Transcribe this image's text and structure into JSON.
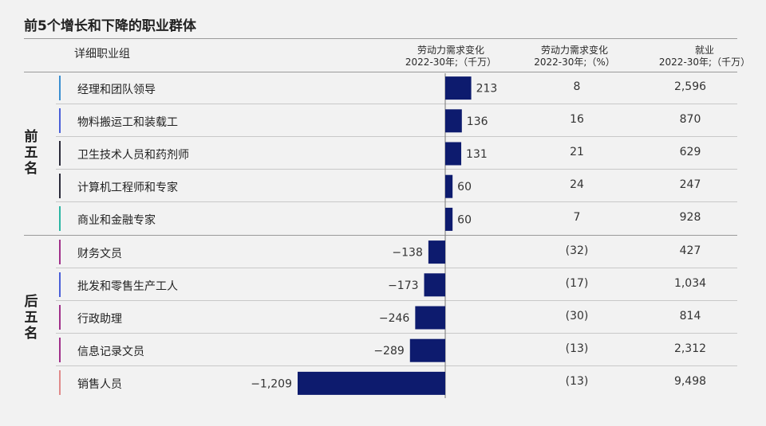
{
  "title": "前5个增长和下降的职业群体",
  "headers": {
    "group": "详细职业组",
    "col1_line1": "劳动力需求变化",
    "col1_line2": "2022-30年;（千万）",
    "col2_line1": "劳动力需求变化",
    "col2_line2": "2022-30年;（%）",
    "col3_line1": "就业",
    "col3_line2": "2022-30年;（千万）"
  },
  "groups": {
    "top": [
      "前",
      "五",
      "名"
    ],
    "bottom": [
      "后",
      "五",
      "名"
    ]
  },
  "colors": {
    "bar": "#0d1b6e",
    "markers": [
      "#3a8fd1",
      "#4a5fd8",
      "#2b2b3a",
      "#2b2b3a",
      "#2bb5a3",
      "#a0308a",
      "#4a5fd8",
      "#a0308a",
      "#a0308a",
      "#e08a8a"
    ]
  },
  "rows": [
    {
      "label": "经理和团队领导",
      "pct": "8",
      "emp": "2,596"
    },
    {
      "label": "物料搬运工和装载工",
      "pct": "16",
      "emp": "870"
    },
    {
      "label": "卫生技术人员和药剂师",
      "pct": "21",
      "emp": "629"
    },
    {
      "label": "计算机工程师和专家",
      "pct": "24",
      "emp": "247"
    },
    {
      "label": "商业和金融专家",
      "pct": "7",
      "emp": "928"
    },
    {
      "label": "财务文员",
      "pct": "(32)",
      "emp": "427"
    },
    {
      "label": "批发和零售生产工人",
      "pct": "(17)",
      "emp": "1,034"
    },
    {
      "label": "行政助理",
      "pct": "(30)",
      "emp": "814"
    },
    {
      "label": "信息记录文员",
      "pct": "(13)",
      "emp": "2,312"
    },
    {
      "label": "销售人员",
      "pct": "(13)",
      "emp": "9,498"
    }
  ],
  "chart_data": {
    "type": "bar",
    "orientation": "horizontal",
    "categories": [
      "经理和团队领导",
      "物料搬运工和装载工",
      "卫生技术人员和药剂师",
      "计算机工程师和专家",
      "商业和金融专家",
      "财务文员",
      "批发和零售生产工人",
      "行政助理",
      "信息记录文员",
      "销售人员"
    ],
    "values": [
      213,
      136,
      131,
      60,
      60,
      -138,
      -173,
      -246,
      -289,
      -1209
    ],
    "value_labels": [
      "213",
      "136",
      "131",
      "60",
      "60",
      "−138",
      "−173",
      "−246",
      "−289",
      "−1,209"
    ],
    "title": "前5个增长和下降的职业群体",
    "xlabel": "劳动力需求变化 2022-30年;（千万）",
    "ylabel": "",
    "xlim": [
      -1209,
      213
    ]
  }
}
